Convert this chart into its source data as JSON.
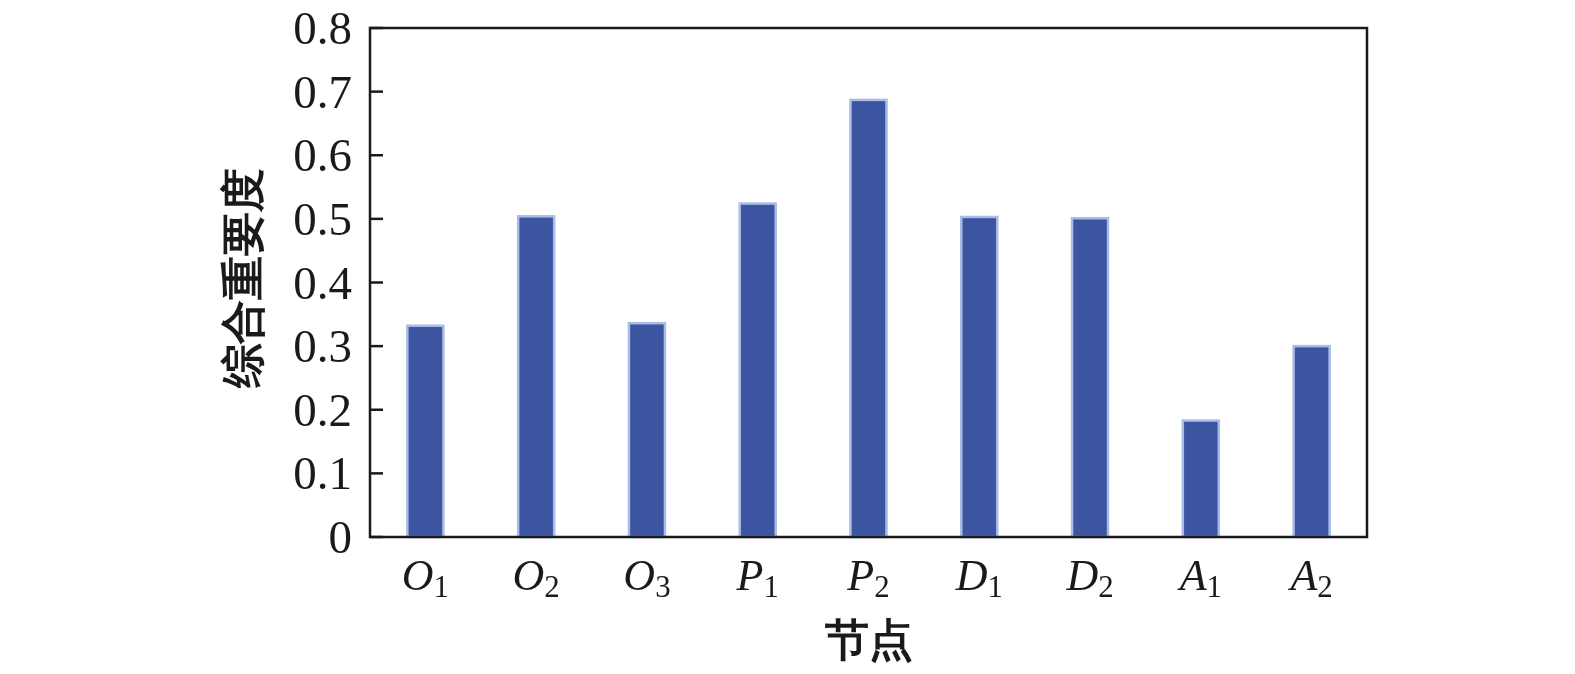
{
  "chart_data": {
    "type": "bar",
    "categories": [
      "O$_{1}$",
      "O$_{2}$",
      "O$_{3}$",
      "P$_{1}$",
      "P$_{2}$",
      "D$_{1}$",
      "D$_{2}$",
      "A$_{1}$",
      "A$_{2}$"
    ],
    "values": [
      0.332,
      0.504,
      0.336,
      0.524,
      0.687,
      0.503,
      0.501,
      0.183,
      0.3
    ],
    "color": "#3b55a0",
    "xlabel": "节点",
    "ylabel": "综合重要度",
    "ylim": [
      0,
      0.8
    ],
    "yticks": [
      0,
      0.1,
      0.2,
      0.3,
      0.4,
      0.5,
      0.6,
      0.7,
      0.8
    ]
  }
}
